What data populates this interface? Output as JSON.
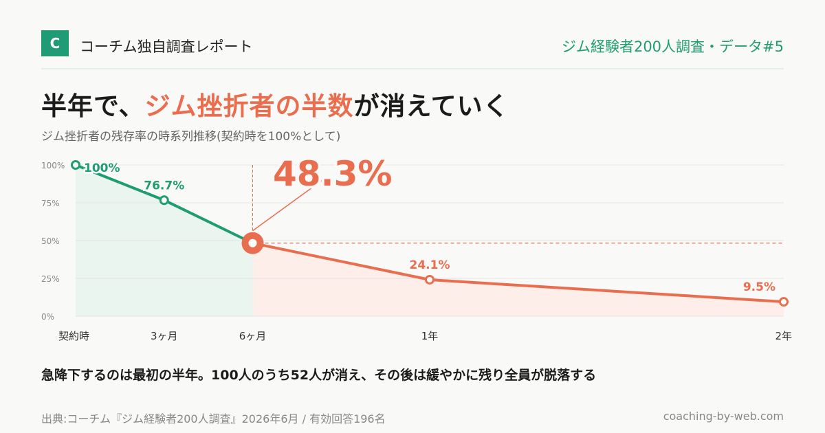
{
  "header": {
    "logo_letter": "C",
    "brand": "コーチム独自調査レポート",
    "series_tag": "ジム経験者200人調査・データ#5"
  },
  "headline": {
    "part1": "半年で、",
    "accent": "ジム挫折者の半数",
    "part2": "が消えていく"
  },
  "chart_data": {
    "type": "line",
    "title": "半年で、ジム挫折者の半数が消えていく",
    "subtitle": "ジム挫折者の残存率の時系列推移(契約時を100%として)",
    "xlabel": "",
    "ylabel": "",
    "x_months": [
      0,
      3,
      6,
      12,
      24
    ],
    "categories": [
      "契約時",
      "3ヶ月",
      "6ヶ月",
      "1年",
      "2年"
    ],
    "values": [
      100,
      76.7,
      48.3,
      24.1,
      9.5
    ],
    "value_labels": [
      "100%",
      "76.7%",
      "48.3%",
      "24.1%",
      "9.5%"
    ],
    "yticks": [
      0,
      25,
      50,
      75,
      100
    ],
    "ytick_labels": [
      "0%",
      "25%",
      "50%",
      "75%",
      "100%"
    ],
    "ylim": [
      0,
      100
    ],
    "grid": true,
    "highlight_category": "6ヶ月",
    "highlight_value_label": "48.3%",
    "colors": {
      "early": "#1f9c73",
      "late": "#e96e50",
      "early_fill": "#eaf5f0",
      "late_fill": "#fdeee9"
    }
  },
  "summary": "急降下するのは最初の半年。100人のうち52人が消え、その後は緩やかに残り全員が脱落する",
  "footer": {
    "source": "出典:コーチム『ジム経験者200人調査』2026年6月 / 有効回答196名",
    "site": "coaching-by-web.com"
  }
}
